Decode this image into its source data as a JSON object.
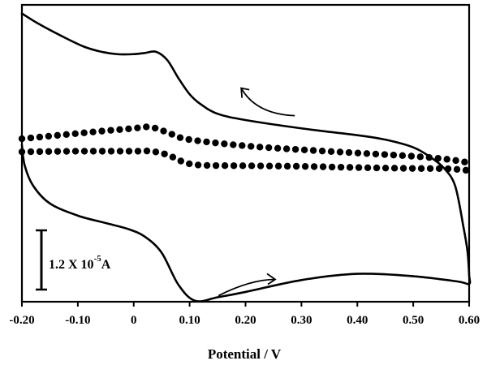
{
  "chart_data": {
    "type": "line",
    "title": "",
    "xlabel": "Potential / V",
    "ylabel": "",
    "xlim": [
      -0.2,
      0.6
    ],
    "ylim": [
      0,
      1
    ],
    "x_tick_labels": [
      "-0.20",
      "-0.10",
      "0",
      "0.10",
      "0.20",
      "0.30",
      "0.40",
      "0.50",
      "0.60"
    ],
    "x_ticks": [
      -0.2,
      -0.1,
      0,
      0.1,
      0.2,
      0.3,
      0.4,
      0.5,
      0.6
    ],
    "y_tick_labels": [],
    "grid": false,
    "legend": "none",
    "scale_bar": {
      "text": "1.2 X 10",
      "exponent": "-5",
      "unit": "A"
    },
    "series": [
      {
        "style": "solid",
        "color": "#000000",
        "points": [
          [
            -0.2,
            0.971
          ],
          [
            -0.17,
            0.936
          ],
          [
            -0.13,
            0.896
          ],
          [
            -0.09,
            0.86
          ],
          [
            -0.06,
            0.843
          ],
          [
            -0.03,
            0.834
          ],
          [
            0.0,
            0.834
          ],
          [
            0.02,
            0.838
          ],
          [
            0.04,
            0.842
          ],
          [
            0.06,
            0.814
          ],
          [
            0.08,
            0.753
          ],
          [
            0.1,
            0.699
          ],
          [
            0.12,
            0.665
          ],
          [
            0.15,
            0.633
          ],
          [
            0.2,
            0.612
          ],
          [
            0.3,
            0.584
          ],
          [
            0.4,
            0.561
          ],
          [
            0.45,
            0.546
          ],
          [
            0.5,
            0.52
          ],
          [
            0.53,
            0.488
          ],
          [
            0.555,
            0.45
          ],
          [
            0.575,
            0.39
          ],
          [
            0.59,
            0.25
          ],
          [
            0.597,
            0.17
          ],
          [
            0.6,
            0.09
          ],
          [
            0.6,
            0.06
          ],
          [
            0.58,
            0.068
          ],
          [
            0.5,
            0.086
          ],
          [
            0.4,
            0.094
          ],
          [
            0.3,
            0.073
          ],
          [
            0.2,
            0.033
          ],
          [
            0.15,
            0.015
          ],
          [
            0.11,
            0.003
          ],
          [
            0.08,
            0.057
          ],
          [
            0.05,
            0.165
          ],
          [
            0.02,
            0.219
          ],
          [
            -0.01,
            0.245
          ],
          [
            -0.05,
            0.265
          ],
          [
            -0.1,
            0.29
          ],
          [
            -0.15,
            0.331
          ],
          [
            -0.18,
            0.391
          ],
          [
            -0.195,
            0.459
          ],
          [
            -0.2,
            0.528
          ]
        ]
      },
      {
        "style": "dotted",
        "color": "#000000",
        "points": [
          [
            -0.2,
            0.549
          ],
          [
            -0.1,
            0.567
          ],
          [
            -0.05,
            0.576
          ],
          [
            0.0,
            0.584
          ],
          [
            0.02,
            0.589
          ],
          [
            0.04,
            0.584
          ],
          [
            0.07,
            0.563
          ],
          [
            0.1,
            0.546
          ],
          [
            0.2,
            0.525
          ],
          [
            0.3,
            0.512
          ],
          [
            0.4,
            0.501
          ],
          [
            0.5,
            0.49
          ],
          [
            0.56,
            0.48
          ],
          [
            0.6,
            0.468
          ]
        ]
      },
      {
        "style": "dotted",
        "color": "#000000",
        "points": [
          [
            -0.2,
            0.505
          ],
          [
            -0.1,
            0.507
          ],
          [
            0.0,
            0.507
          ],
          [
            0.03,
            0.507
          ],
          [
            0.06,
            0.495
          ],
          [
            0.09,
            0.47
          ],
          [
            0.12,
            0.46
          ],
          [
            0.2,
            0.458
          ],
          [
            0.3,
            0.456
          ],
          [
            0.4,
            0.452
          ],
          [
            0.5,
            0.449
          ],
          [
            0.56,
            0.448
          ],
          [
            0.6,
            0.442
          ]
        ]
      }
    ],
    "annotations": [
      {
        "type": "arrow",
        "direction": "left",
        "x": 0.23,
        "y": 0.725
      },
      {
        "type": "arrow",
        "direction": "right",
        "x": 0.195,
        "y": 0.086
      }
    ]
  }
}
